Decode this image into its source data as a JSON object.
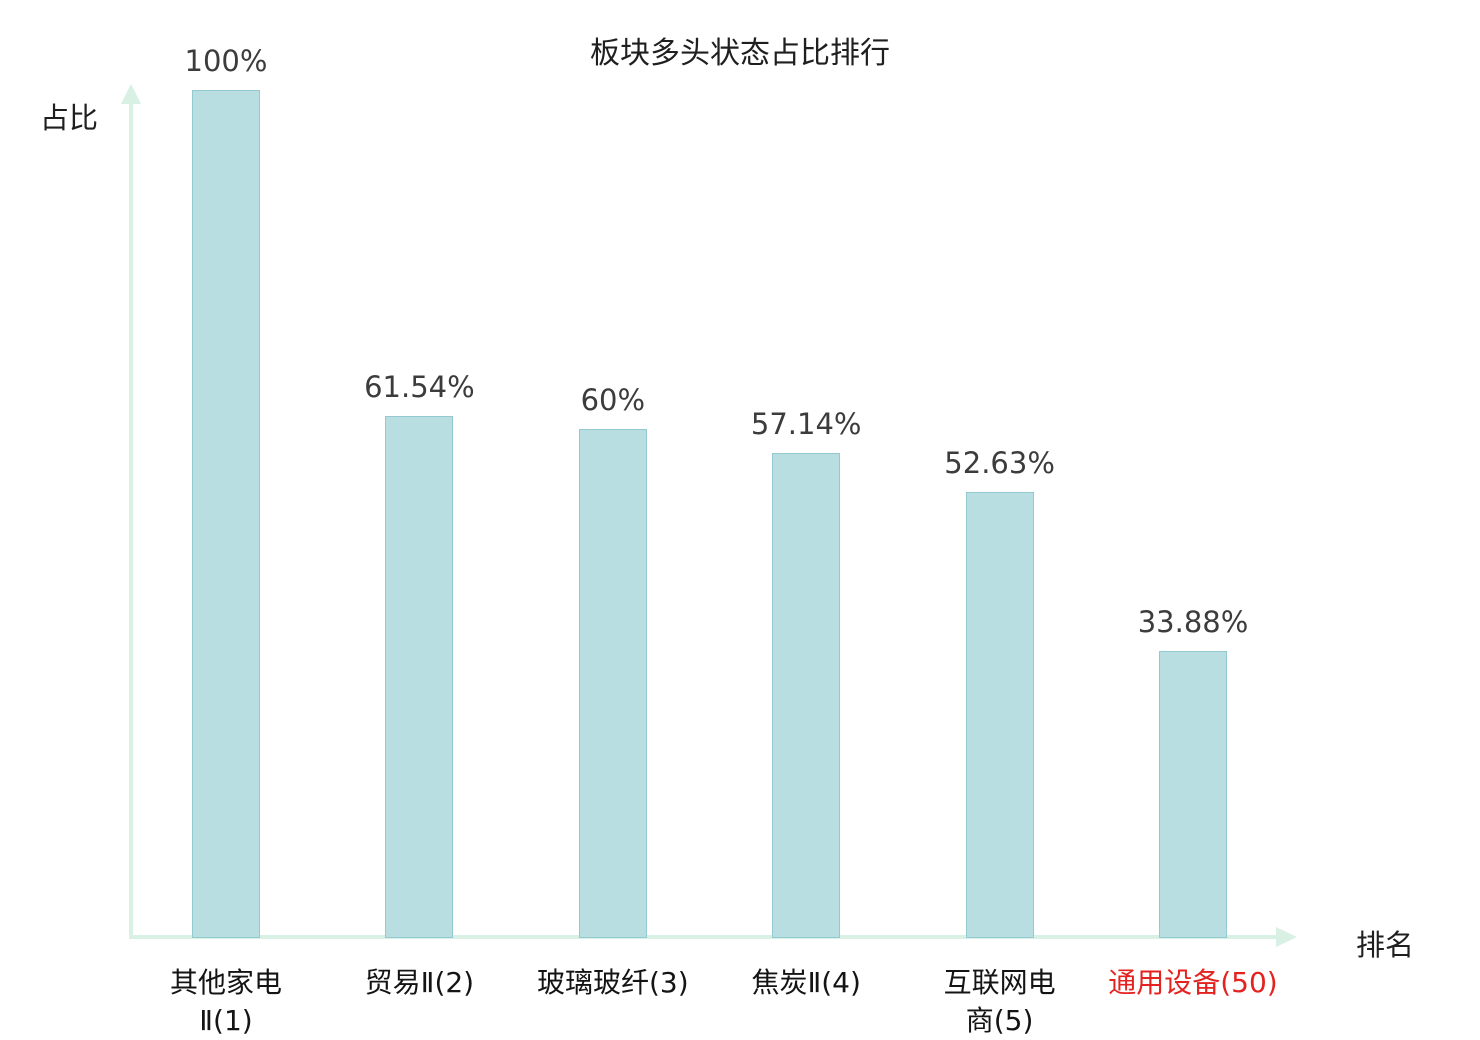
{
  "chart_data": {
    "type": "bar",
    "title": "板块多头状态占比排行",
    "ylabel": "占比",
    "xlabel": "排名",
    "categories": [
      "其他家电Ⅱ(1)",
      "贸易Ⅱ(2)",
      "玻璃玻纤(3)",
      "焦炭Ⅱ(4)",
      "互联网电商(5)",
      "通用设备(50)"
    ],
    "tick_labels": [
      "其他家电\nⅡ(1)",
      "贸易Ⅱ(2)",
      "玻璃玻纤(3)",
      "焦炭Ⅱ(4)",
      "互联网电\n商(5)",
      "通用设备(50)"
    ],
    "values": [
      100,
      61.54,
      60,
      57.14,
      52.63,
      33.88
    ],
    "value_labels": [
      "100%",
      "61.54%",
      "60%",
      "57.14%",
      "52.63%",
      "33.88%"
    ],
    "highlight_index": 5,
    "ylim": [
      0,
      100
    ],
    "grid": false,
    "legend_position": "none",
    "colors": {
      "bar_fill": "#b8dee2",
      "bar_border": "#94c9d0",
      "axis": "#d9f0e4",
      "value_text": "#3c3c3c",
      "tick_text": "#141414",
      "highlight_text": "#e42320"
    }
  }
}
